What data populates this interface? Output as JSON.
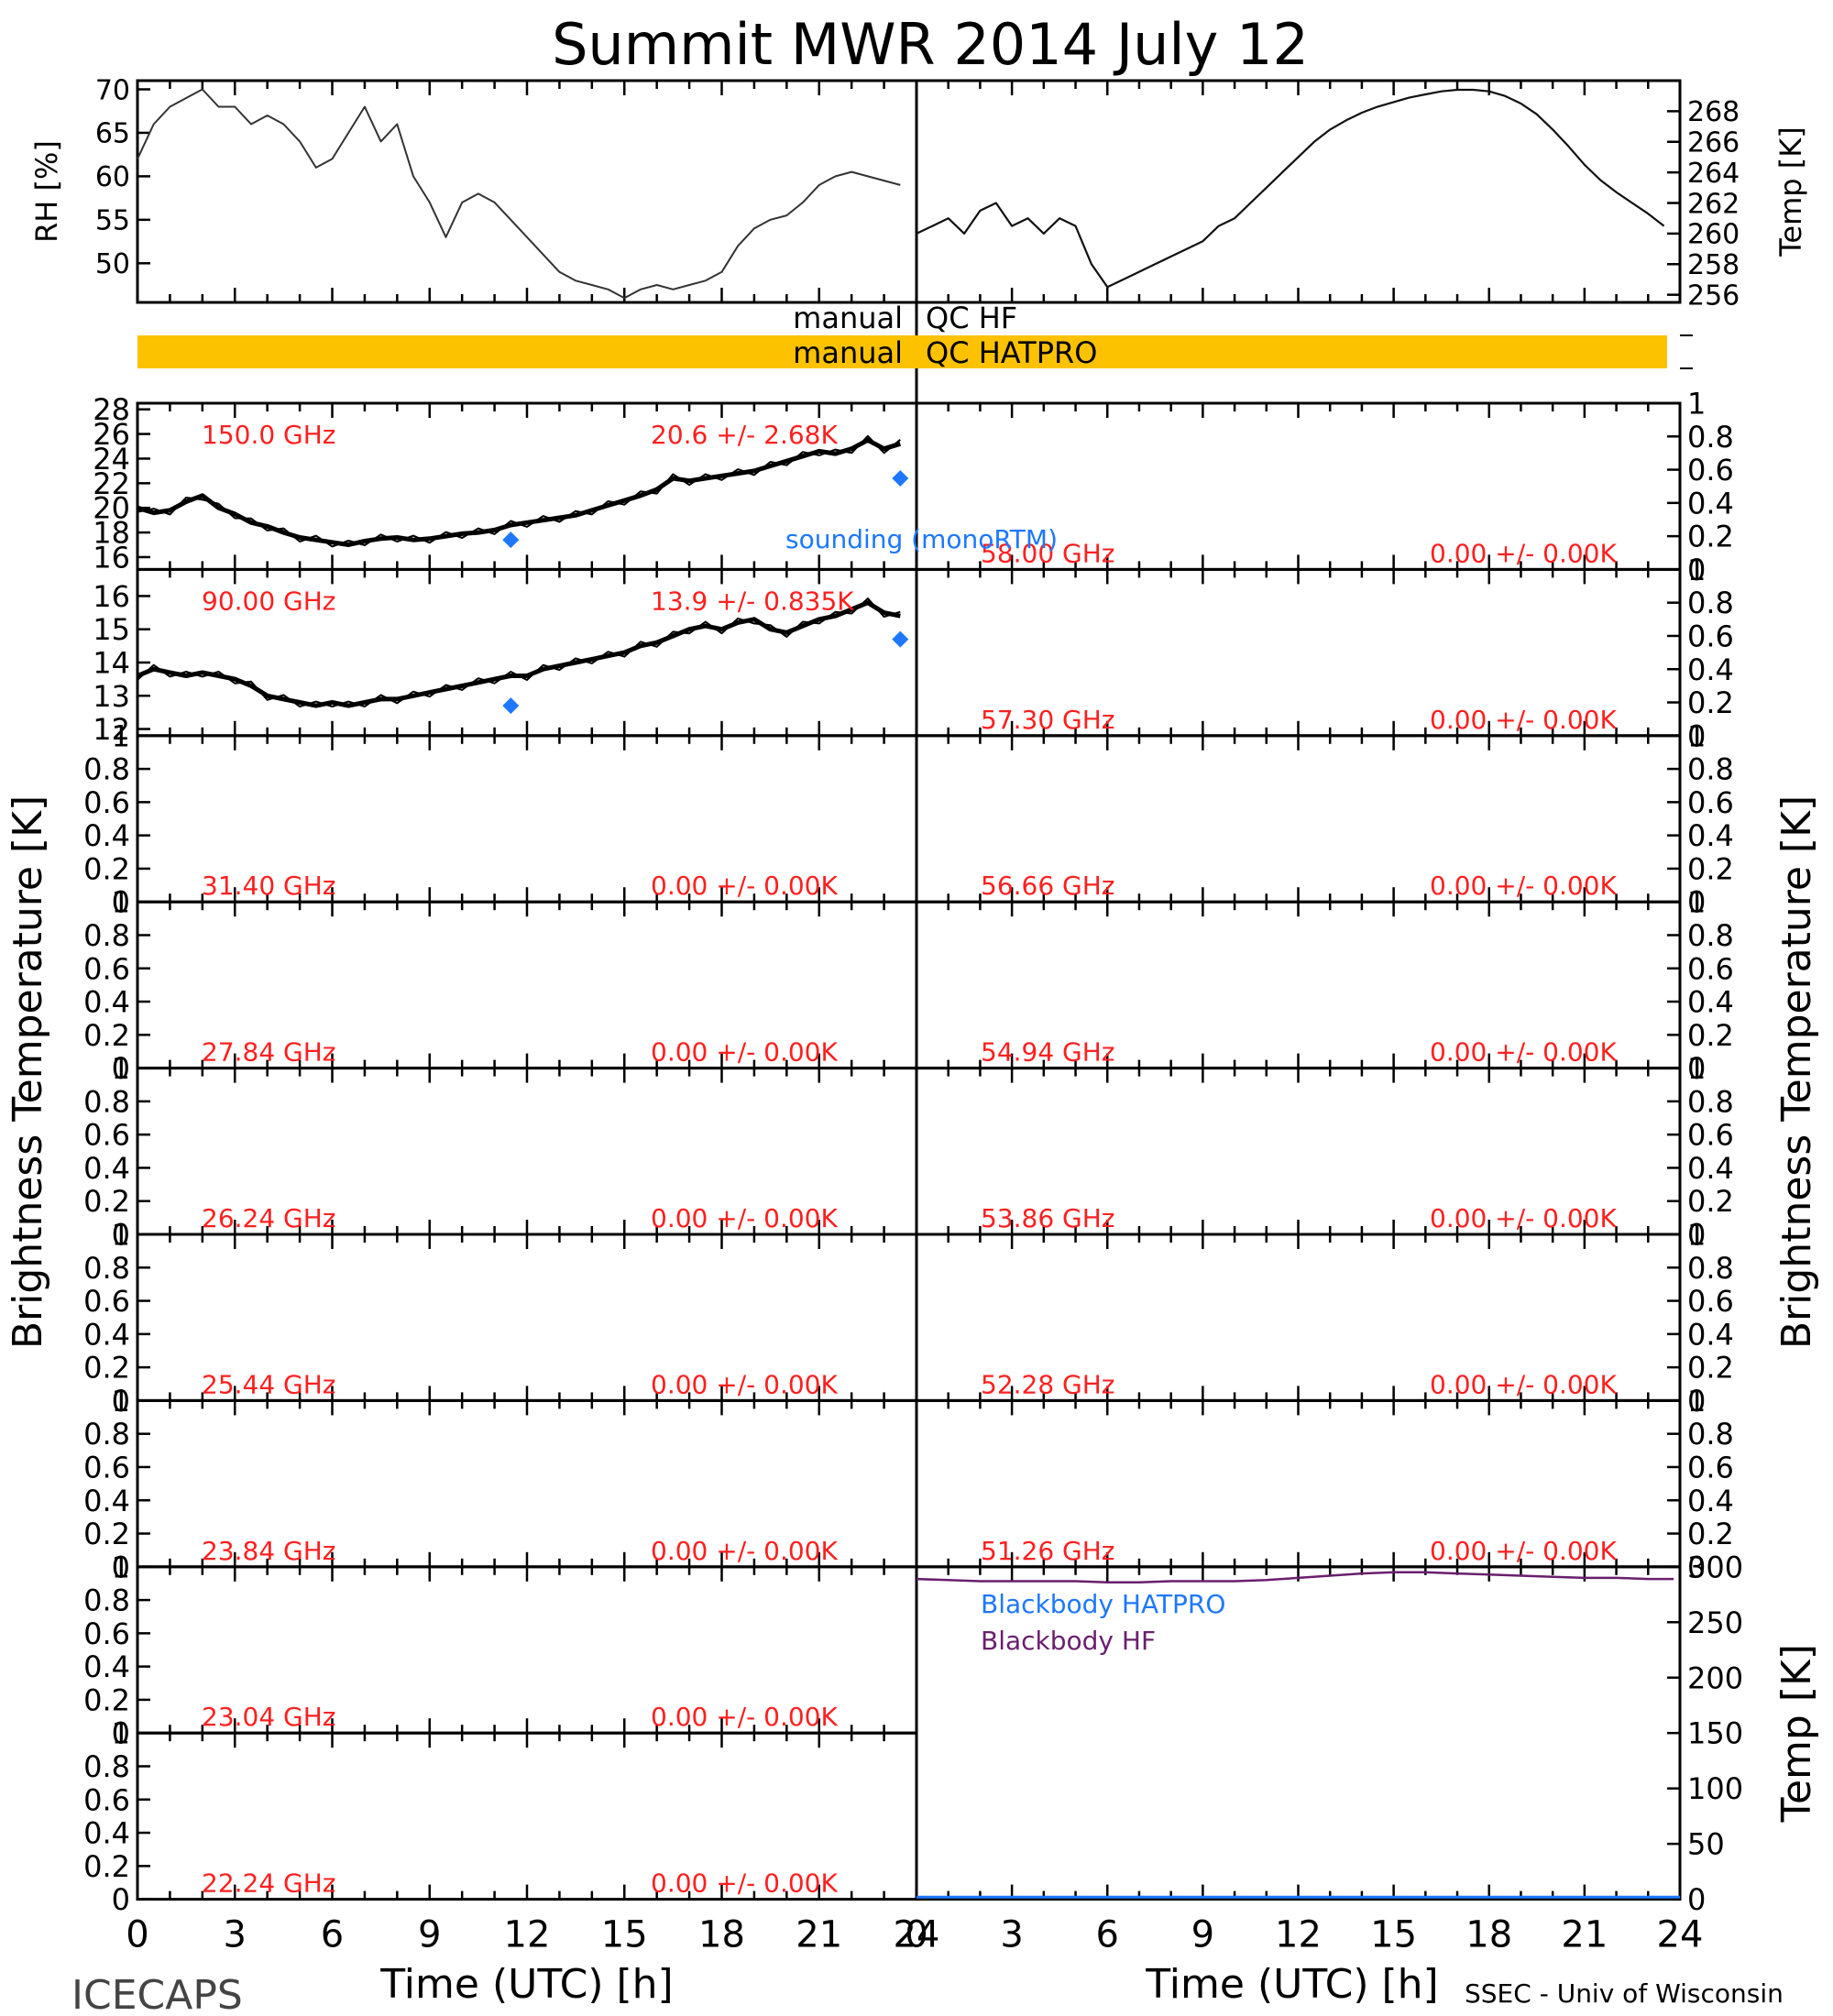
{
  "title": "Summit MWR 2014 July 12",
  "footer": {
    "left": "ICECAPS",
    "right": "SSEC - Univ of Wisconsin"
  },
  "axis_labels": {
    "time": "Time (UTC) [h]",
    "brightness": "Brightness Temperature [K]",
    "rh": "RH [%]",
    "temp_met": "Temp [K]",
    "temp_bb": "Temp [K]"
  },
  "colors": {
    "axes": "#000000",
    "channel_label": "#ff2020",
    "sounding": "#1e78ff",
    "qc_bar": "#fcc200",
    "bb_hatpro": "#1e78ff",
    "bb_hf": "#6a1f6e"
  },
  "qc": {
    "hf_label_left": "manual",
    "hf_label_right": "QC HF",
    "hatpro_label_left": "manual",
    "hatpro_label_right": "QC HATPRO",
    "hatpro_bar_start_h": 0,
    "hatpro_bar_end_h": 23.8
  },
  "chart_data": [
    {
      "id": "rh",
      "type": "line",
      "xlabel": "",
      "ylabel": "RH [%]",
      "xlim": [
        0,
        24
      ],
      "ylim": [
        45.5,
        71
      ],
      "yticks": [
        50,
        55,
        60,
        65,
        70
      ],
      "x": [
        0,
        0.5,
        1,
        1.5,
        2,
        2.5,
        3,
        3.5,
        4,
        4.5,
        5,
        5.5,
        6,
        6.5,
        7,
        7.5,
        8,
        8.5,
        9,
        9.5,
        10,
        10.5,
        11,
        11.5,
        12,
        12.5,
        13,
        13.5,
        14,
        14.5,
        15,
        15.5,
        16,
        16.5,
        17,
        17.5,
        18,
        18.5,
        19,
        19.5,
        20,
        20.5,
        21,
        21.5,
        22,
        22.5,
        23,
        23.5
      ],
      "y": [
        62,
        66,
        68,
        69,
        70,
        68,
        68,
        66,
        67,
        66,
        64,
        61,
        62,
        65,
        68,
        64,
        66,
        60,
        57,
        53,
        57,
        58,
        57,
        55,
        53,
        51,
        49,
        48,
        47.5,
        47,
        46,
        47,
        47.5,
        47,
        47.5,
        48,
        49,
        52,
        54,
        55,
        55.5,
        57,
        59,
        60,
        60.5,
        60,
        59.5,
        59
      ]
    },
    {
      "id": "temp",
      "type": "line",
      "ylabel": "Temp [K]",
      "xlim": [
        0,
        24
      ],
      "ylim": [
        255.5,
        270
      ],
      "yticks": [
        256,
        258,
        260,
        262,
        264,
        266,
        268
      ],
      "x": [
        0,
        0.5,
        1,
        1.5,
        2,
        2.5,
        3,
        3.5,
        4,
        4.5,
        5,
        5.5,
        6,
        6.5,
        7,
        7.5,
        8,
        8.5,
        9,
        9.5,
        10,
        10.5,
        11,
        11.5,
        12,
        12.5,
        13,
        13.5,
        14,
        14.5,
        15,
        15.5,
        16,
        16.5,
        17,
        17.5,
        18,
        18.5,
        19,
        19.5,
        20,
        20.5,
        21,
        21.5,
        22,
        22.5,
        23,
        23.5
      ],
      "y": [
        260,
        260.5,
        261,
        260,
        261.5,
        262,
        260.5,
        261,
        260,
        261,
        260.5,
        258,
        256.5,
        257,
        257.5,
        258,
        258.5,
        259,
        259.5,
        260.5,
        261,
        262,
        263,
        264,
        265,
        266,
        266.8,
        267.4,
        267.9,
        268.3,
        268.6,
        268.9,
        269.1,
        269.3,
        269.4,
        269.4,
        269.3,
        269,
        268.5,
        267.8,
        266.8,
        265.7,
        264.5,
        263.5,
        262.7,
        262,
        261.3,
        260.5
      ]
    },
    {
      "id": "ch-150",
      "type": "line",
      "channel": "150.0 GHz",
      "stats": "20.6 +/- 2.68K",
      "ylim": [
        15,
        28.5
      ],
      "yticks": [
        16,
        18,
        20,
        22,
        24,
        26,
        28
      ],
      "x": [
        0,
        0.5,
        1,
        1.5,
        2,
        2.5,
        3,
        3.5,
        4,
        4.5,
        5,
        5.5,
        6,
        6.5,
        7,
        7.5,
        8,
        8.5,
        9,
        9.5,
        10,
        10.5,
        11,
        11.5,
        12,
        12.5,
        13,
        13.5,
        14,
        14.5,
        15,
        15.5,
        16,
        16.5,
        17,
        17.5,
        18,
        18.5,
        19,
        19.5,
        20,
        20.5,
        21,
        21.5,
        22,
        22.5,
        23,
        23.5
      ],
      "y": [
        20,
        19.6,
        19.8,
        20.5,
        21,
        20,
        19.5,
        18.8,
        18.5,
        18,
        17.6,
        17.4,
        17.2,
        17,
        17.3,
        17.5,
        17.6,
        17.4,
        17.5,
        17.7,
        17.9,
        18,
        18.2,
        18.6,
        18.8,
        19,
        19.2,
        19.4,
        19.8,
        20.2,
        20.6,
        21,
        21.5,
        22.4,
        22.2,
        22.4,
        22.6,
        22.8,
        23,
        23.4,
        23.8,
        24.2,
        24.6,
        24.4,
        24.8,
        25.5,
        24.8,
        25.2
      ],
      "sounding": {
        "name": "sounding (monoRTM)",
        "x": [
          11.5,
          23.5
        ],
        "y": [
          17.4,
          22.4
        ]
      }
    },
    {
      "id": "ch-90",
      "type": "line",
      "channel": "90.00 GHz",
      "stats": "13.9 +/- 0.835K",
      "ylim": [
        11.8,
        16.8
      ],
      "yticks": [
        12,
        13,
        14,
        15,
        16
      ],
      "x": [
        0,
        0.5,
        1,
        1.5,
        2,
        2.5,
        3,
        3.5,
        4,
        4.5,
        5,
        5.5,
        6,
        6.5,
        7,
        7.5,
        8,
        8.5,
        9,
        9.5,
        10,
        10.5,
        11,
        11.5,
        12,
        12.5,
        13,
        13.5,
        14,
        14.5,
        15,
        15.5,
        16,
        16.5,
        17,
        17.5,
        18,
        18.5,
        19,
        19.5,
        20,
        20.5,
        21,
        21.5,
        22,
        22.5,
        23,
        23.5
      ],
      "y": [
        13.6,
        13.8,
        13.7,
        13.6,
        13.7,
        13.6,
        13.5,
        13.3,
        13.0,
        12.9,
        12.8,
        12.7,
        12.8,
        12.7,
        12.8,
        12.9,
        12.9,
        13,
        13.1,
        13.2,
        13.3,
        13.4,
        13.5,
        13.6,
        13.6,
        13.8,
        13.9,
        14.0,
        14.1,
        14.2,
        14.3,
        14.5,
        14.6,
        14.8,
        15.0,
        15.1,
        15.0,
        15.2,
        15.3,
        15.0,
        14.9,
        15.1,
        15.3,
        15.4,
        15.6,
        15.8,
        15.5,
        15.4
      ],
      "sounding": {
        "x": [
          11.5,
          23.5
        ],
        "y": [
          12.7,
          14.7
        ]
      }
    },
    {
      "id": "ch-58.00",
      "type": "line",
      "channel": "58.00 GHz",
      "stats": "0.00 +/- 0.00K",
      "ylim": [
        0,
        1
      ],
      "yticks": [
        0.0,
        0.2,
        0.4,
        0.6,
        0.8,
        1.0
      ],
      "x": [],
      "y": []
    },
    {
      "id": "ch-57.30",
      "type": "line",
      "channel": "57.30 GHz",
      "stats": "0.00 +/- 0.00K",
      "ylim": [
        0,
        1
      ],
      "yticks": [
        0.0,
        0.2,
        0.4,
        0.6,
        0.8,
        1.0
      ],
      "x": [],
      "y": []
    },
    {
      "id": "ch-31.40",
      "type": "line",
      "channel": "31.40 GHz",
      "stats": "0.00 +/- 0.00K",
      "ylim": [
        0,
        1
      ],
      "yticks": [
        0.0,
        0.2,
        0.4,
        0.6,
        0.8,
        1.0
      ],
      "x": [],
      "y": []
    },
    {
      "id": "ch-56.66",
      "type": "line",
      "channel": "56.66 GHz",
      "stats": "0.00 +/- 0.00K",
      "ylim": [
        0,
        1
      ],
      "yticks": [
        0.0,
        0.2,
        0.4,
        0.6,
        0.8,
        1.0
      ],
      "x": [],
      "y": []
    },
    {
      "id": "ch-27.84",
      "type": "line",
      "channel": "27.84 GHz",
      "stats": "0.00 +/- 0.00K",
      "ylim": [
        0,
        1
      ],
      "yticks": [
        0.0,
        0.2,
        0.4,
        0.6,
        0.8,
        1.0
      ],
      "x": [],
      "y": []
    },
    {
      "id": "ch-54.94",
      "type": "line",
      "channel": "54.94 GHz",
      "stats": "0.00 +/- 0.00K",
      "ylim": [
        0,
        1
      ],
      "yticks": [
        0.0,
        0.2,
        0.4,
        0.6,
        0.8,
        1.0
      ],
      "x": [],
      "y": []
    },
    {
      "id": "ch-26.24",
      "type": "line",
      "channel": "26.24 GHz",
      "stats": "0.00 +/- 0.00K",
      "ylim": [
        0,
        1
      ],
      "yticks": [
        0.0,
        0.2,
        0.4,
        0.6,
        0.8,
        1.0
      ],
      "x": [],
      "y": []
    },
    {
      "id": "ch-53.86",
      "type": "line",
      "channel": "53.86 GHz",
      "stats": "0.00 +/- 0.00K",
      "ylim": [
        0,
        1
      ],
      "yticks": [
        0.0,
        0.2,
        0.4,
        0.6,
        0.8,
        1.0
      ],
      "x": [],
      "y": []
    },
    {
      "id": "ch-25.44",
      "type": "line",
      "channel": "25.44 GHz",
      "stats": "0.00 +/- 0.00K",
      "ylim": [
        0,
        1
      ],
      "yticks": [
        0.0,
        0.2,
        0.4,
        0.6,
        0.8,
        1.0
      ],
      "x": [],
      "y": []
    },
    {
      "id": "ch-52.28",
      "type": "line",
      "channel": "52.28 GHz",
      "stats": "0.00 +/- 0.00K",
      "ylim": [
        0,
        1
      ],
      "yticks": [
        0.0,
        0.2,
        0.4,
        0.6,
        0.8,
        1.0
      ],
      "x": [],
      "y": []
    },
    {
      "id": "ch-23.84",
      "type": "line",
      "channel": "23.84 GHz",
      "stats": "0.00 +/- 0.00K",
      "ylim": [
        0,
        1
      ],
      "yticks": [
        0.0,
        0.2,
        0.4,
        0.6,
        0.8,
        1.0
      ],
      "x": [],
      "y": []
    },
    {
      "id": "ch-51.26",
      "type": "line",
      "channel": "51.26 GHz",
      "stats": "0.00 +/- 0.00K",
      "ylim": [
        0,
        1
      ],
      "yticks": [
        0.0,
        0.2,
        0.4,
        0.6,
        0.8,
        1.0
      ],
      "x": [],
      "y": []
    },
    {
      "id": "ch-23.04",
      "type": "line",
      "channel": "23.04 GHz",
      "stats": "0.00 +/- 0.00K",
      "ylim": [
        0,
        1
      ],
      "yticks": [
        0.0,
        0.2,
        0.4,
        0.6,
        0.8,
        1.0
      ],
      "x": [],
      "y": []
    },
    {
      "id": "ch-22.24",
      "type": "line",
      "channel": "22.24 GHz",
      "stats": "0.00 +/- 0.00K",
      "ylim": [
        0,
        1
      ],
      "yticks": [
        0.0,
        0.2,
        0.4,
        0.6,
        0.8,
        1.0
      ],
      "x": [],
      "y": []
    },
    {
      "id": "blackbody",
      "type": "line",
      "ylabel": "Temp [K]",
      "xlim": [
        0,
        24
      ],
      "ylim": [
        0,
        300
      ],
      "yticks": [
        0,
        50,
        100,
        150,
        200,
        250,
        300
      ],
      "series": [
        {
          "name": "Blackbody HATPRO",
          "x": [
            0,
            24
          ],
          "y": [
            2,
            2
          ]
        },
        {
          "name": "Blackbody HF",
          "x": [
            0,
            1,
            2,
            3,
            4,
            5,
            6,
            7,
            8,
            9,
            10,
            11,
            12,
            13,
            14,
            15,
            16,
            17,
            18,
            19,
            20,
            21,
            22,
            23,
            23.8
          ],
          "y": [
            289,
            288,
            287,
            287,
            287,
            287,
            286,
            286,
            287,
            287,
            287,
            288,
            290,
            292,
            294,
            295,
            295,
            294,
            293,
            292,
            291,
            290,
            290,
            289,
            289
          ]
        }
      ]
    }
  ],
  "xaxis": {
    "range": [
      0,
      24
    ],
    "major_ticks": [
      0,
      3,
      6,
      9,
      12,
      15,
      18,
      21,
      24
    ],
    "tick_labels": [
      "0",
      "3",
      "6",
      "9",
      "12",
      "15",
      "18",
      "21",
      "24"
    ]
  }
}
